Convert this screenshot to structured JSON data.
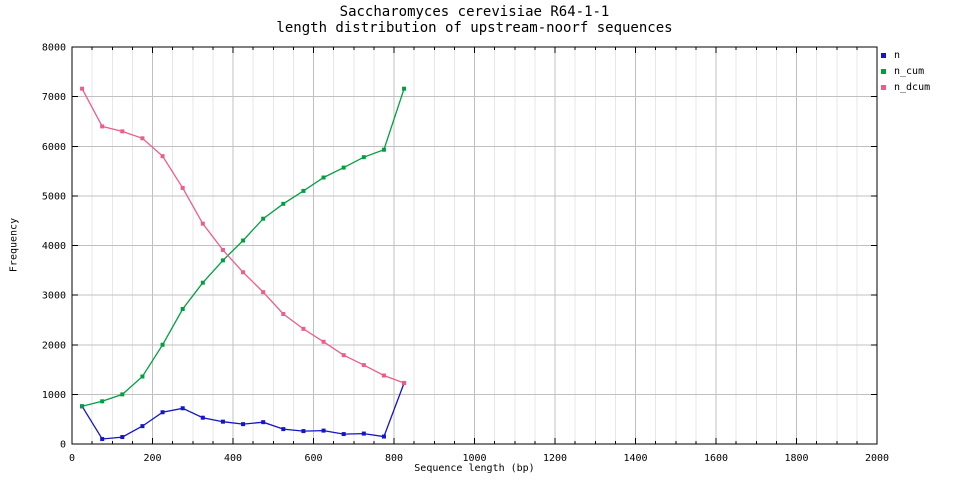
{
  "chart_data": {
    "type": "line",
    "title": "Saccharomyces cerevisiae R64-1-1",
    "subtitle": "length distribution of upstream-noorf sequences",
    "xlabel": "Sequence length (bp)",
    "ylabel": "Frequency",
    "xlim": [
      0,
      2000
    ],
    "ylim": [
      0,
      8000
    ],
    "x_ticks": [
      0,
      200,
      400,
      600,
      800,
      1000,
      1200,
      1400,
      1600,
      1800,
      2000
    ],
    "y_ticks": [
      0,
      1000,
      2000,
      3000,
      4000,
      5000,
      6000,
      7000,
      8000
    ],
    "x_minor_step": 50,
    "grid": "major-xy-plus-minor-x",
    "legend_position": "outside-top-right",
    "marker": "filled-square",
    "x": [
      25,
      75,
      125,
      175,
      225,
      275,
      325,
      375,
      425,
      475,
      525,
      575,
      625,
      675,
      725,
      775,
      825
    ],
    "series": [
      {
        "name": "n",
        "color": "#1414c8",
        "values": [
          760,
          100,
          140,
          360,
          640,
          720,
          530,
          450,
          400,
          440,
          300,
          260,
          270,
          200,
          210,
          150,
          1230
        ]
      },
      {
        "name": "n_cum",
        "color": "#00a040",
        "values": [
          760,
          860,
          1000,
          1360,
          2000,
          2720,
          3250,
          3700,
          4100,
          4540,
          4840,
          5100,
          5370,
          5570,
          5780,
          5930,
          7160
        ]
      },
      {
        "name": "n_dcum",
        "color": "#ee5c8c",
        "values": [
          7160,
          6400,
          6300,
          6160,
          5800,
          5160,
          4440,
          3910,
          3460,
          3060,
          2620,
          2320,
          2060,
          1790,
          1590,
          1380,
          1230
        ]
      }
    ],
    "colors": {
      "major_grid": "#c0c0c0",
      "minor_grid": "#e7e7e7",
      "border": "#000000"
    }
  }
}
